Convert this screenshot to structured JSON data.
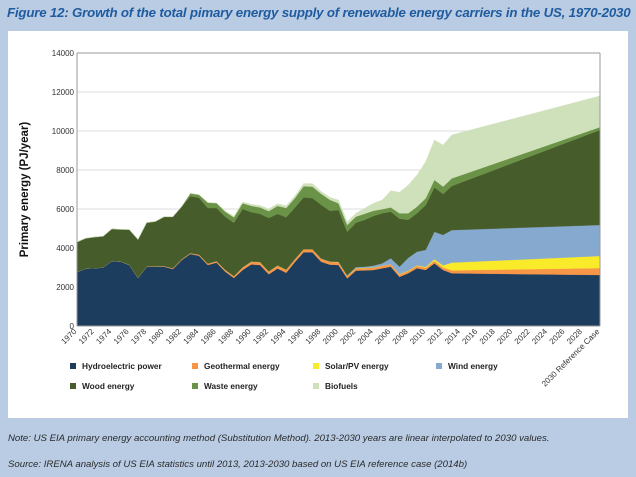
{
  "title": "Figure 12: Growth of the total pimary energy supply of renewable energy carriers in the US, 1970-2030",
  "notes": {
    "note": "Note: US EIA primary energy accounting method (Substitution Method). 2013-2030 years are linear interpolated to 2030 values.",
    "source": "Source: IRENA analysis of US EIA statistics until 2013, 2013-2030 based on US EIA reference case (2014b)"
  },
  "chart_data": {
    "type": "area",
    "stacked": true,
    "title": "Figure 12: Growth of the total pimary energy supply of renewable energy carriers in the US, 1970-2030",
    "xlabel": "",
    "ylabel": "Primary energy  (PJ/year)",
    "ylim": [
      0,
      14000
    ],
    "yticks": [
      0,
      2000,
      4000,
      6000,
      8000,
      10000,
      12000,
      14000
    ],
    "xlim": [
      1970,
      2030
    ],
    "xtick_labels": [
      "1970",
      "1972",
      "1974",
      "1976",
      "1978",
      "1980",
      "1982",
      "1984",
      "1986",
      "1988",
      "1990",
      "1992",
      "1994",
      "1996",
      "1998",
      "2000",
      "2002",
      "2004",
      "2006",
      "2008",
      "2010",
      "2012",
      "2014",
      "2016",
      "2018",
      "2020",
      "2022",
      "2024",
      "2026",
      "2028",
      "2030 Reference Case"
    ],
    "xtick_values": [
      1970,
      1972,
      1974,
      1976,
      1978,
      1980,
      1982,
      1984,
      1986,
      1988,
      1990,
      1992,
      1994,
      1996,
      1998,
      2000,
      2002,
      2004,
      2006,
      2008,
      2010,
      2012,
      2014,
      2016,
      2018,
      2020,
      2022,
      2024,
      2026,
      2028,
      2030
    ],
    "grid": "horizontal",
    "legend_position": "bottom",
    "x": [
      1970,
      1971,
      1972,
      1973,
      1974,
      1975,
      1976,
      1977,
      1978,
      1979,
      1980,
      1981,
      1982,
      1983,
      1984,
      1985,
      1986,
      1987,
      1988,
      1989,
      1990,
      1991,
      1992,
      1993,
      1994,
      1995,
      1996,
      1997,
      1998,
      1999,
      2000,
      2001,
      2002,
      2003,
      2004,
      2005,
      2006,
      2007,
      2008,
      2009,
      2010,
      2011,
      2012,
      2013,
      2030
    ],
    "series": [
      {
        "name": "Hydroelectric power",
        "color": "#1c3d5e",
        "values": [
          2770,
          2950,
          2970,
          3000,
          3330,
          3300,
          3130,
          2460,
          3030,
          3050,
          3040,
          2920,
          3380,
          3690,
          3600,
          3130,
          3250,
          2790,
          2460,
          2870,
          3160,
          3130,
          2650,
          2950,
          2730,
          3280,
          3780,
          3780,
          3300,
          3150,
          3130,
          2440,
          2840,
          2850,
          2870,
          2960,
          3040,
          2520,
          2700,
          2960,
          2870,
          3210,
          2870,
          2700,
          2615
        ]
      },
      {
        "name": "Geothermal energy",
        "color": "#f79646",
        "values": [
          0,
          0,
          0,
          0,
          10,
          10,
          20,
          20,
          20,
          30,
          30,
          40,
          40,
          50,
          60,
          70,
          80,
          90,
          100,
          140,
          140,
          140,
          140,
          150,
          150,
          140,
          150,
          150,
          150,
          150,
          140,
          120,
          120,
          120,
          120,
          120,
          120,
          120,
          120,
          120,
          120,
          130,
          130,
          150,
          355
        ]
      },
      {
        "name": "Solar/PV energy",
        "color": "#f9ea2a",
        "values": [
          0,
          0,
          0,
          0,
          0,
          0,
          0,
          0,
          0,
          0,
          0,
          0,
          0,
          0,
          0,
          0,
          0,
          0,
          0,
          0,
          10,
          10,
          10,
          10,
          10,
          10,
          10,
          10,
          10,
          10,
          10,
          10,
          10,
          10,
          10,
          10,
          10,
          20,
          20,
          30,
          40,
          80,
          110,
          400,
          620
        ]
      },
      {
        "name": "Wind energy",
        "color": "#86a9d0",
        "values": [
          0,
          0,
          0,
          0,
          0,
          0,
          0,
          0,
          0,
          0,
          0,
          0,
          0,
          0,
          0,
          0,
          0,
          0,
          0,
          0,
          0,
          0,
          0,
          0,
          0,
          0,
          0,
          0,
          0,
          0,
          20,
          20,
          50,
          60,
          100,
          120,
          300,
          380,
          650,
          700,
          870,
          1410,
          1560,
          1670,
          1590
        ]
      },
      {
        "name": "Wood energy",
        "color": "#465c2b",
        "values": [
          1530,
          1550,
          1590,
          1600,
          1640,
          1640,
          1790,
          1950,
          2250,
          2280,
          2530,
          2640,
          2700,
          2910,
          2920,
          2850,
          2720,
          2720,
          2740,
          2990,
          2530,
          2470,
          2740,
          2640,
          2690,
          2640,
          2660,
          2620,
          2760,
          2600,
          2650,
          2240,
          2280,
          2400,
          2540,
          2570,
          2390,
          2470,
          1950,
          1970,
          2300,
          2280,
          2100,
          2260,
          4870
        ]
      },
      {
        "name": "Waste energy",
        "color": "#6b9347",
        "values": [
          0,
          0,
          0,
          0,
          0,
          0,
          0,
          0,
          0,
          0,
          0,
          0,
          0,
          150,
          150,
          280,
          250,
          260,
          270,
          290,
          320,
          330,
          350,
          410,
          470,
          490,
          570,
          590,
          560,
          560,
          340,
          350,
          310,
          320,
          270,
          210,
          220,
          270,
          340,
          340,
          350,
          380,
          380,
          390,
          150
        ]
      },
      {
        "name": "Biofuels",
        "color": "#cfe1bb",
        "values": [
          0,
          0,
          0,
          0,
          0,
          0,
          0,
          0,
          0,
          0,
          0,
          0,
          0,
          0,
          0,
          0,
          0,
          50,
          60,
          70,
          80,
          100,
          120,
          110,
          120,
          110,
          140,
          150,
          120,
          130,
          170,
          170,
          170,
          280,
          380,
          470,
          860,
          1080,
          1450,
          1620,
          1880,
          2050,
          2130,
          2230,
          1600
        ]
      }
    ]
  }
}
